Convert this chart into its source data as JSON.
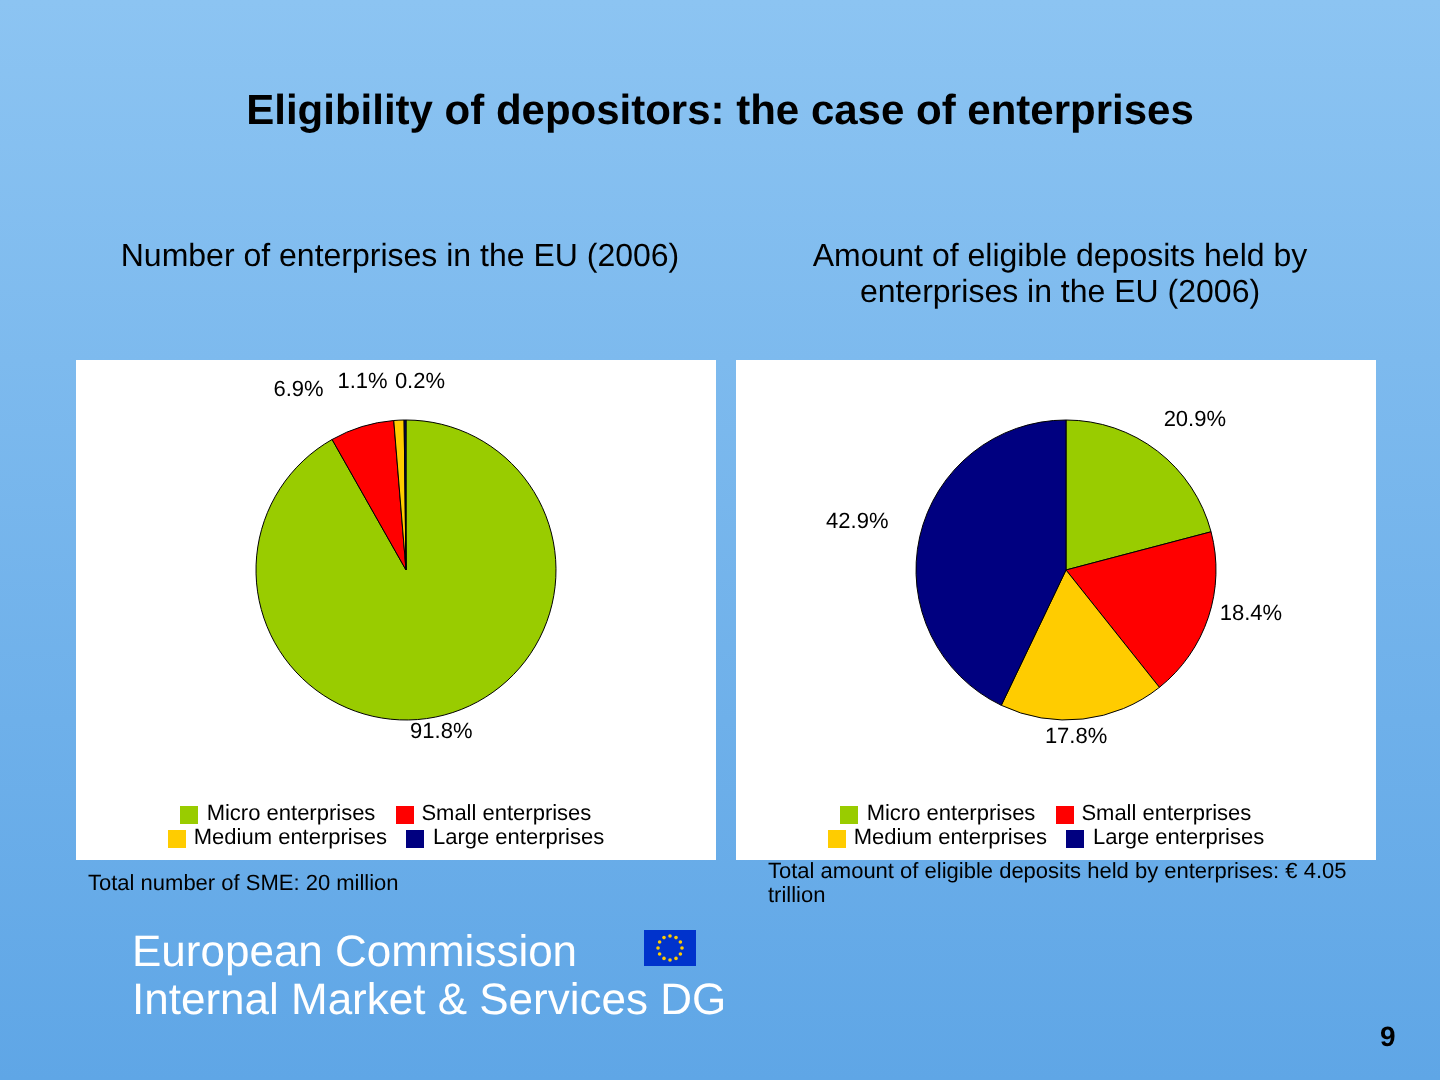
{
  "chart_data": [
    {
      "type": "pie",
      "title": "Eligibility of depositors: the case of enterprises",
      "subtitle": "Number of enterprises in the EU (2006)",
      "categories": [
        "Micro enterprises",
        "Small enterprises",
        "Medium enterprises",
        "Large enterprises"
      ],
      "values": [
        91.8,
        6.9,
        1.1,
        0.2
      ],
      "value_labels": [
        "91.8%",
        "6.9%",
        "1.1%",
        "0.2%"
      ],
      "colors": [
        "#99cc00",
        "#ff0000",
        "#ffcc00",
        "#000080"
      ],
      "legend": "bottom",
      "annotations": [
        "Total number of SME: 20 million",
        "European Commission",
        "Internal Market & Services DG"
      ]
    },
    {
      "type": "pie",
      "title": "Amount of eligible deposits held by enterprises in the EU (2006)",
      "categories": [
        "Micro enterprises",
        "Small enterprises",
        "Medium enterprises",
        "Large enterprises"
      ],
      "values": [
        20.9,
        18.4,
        17.8,
        42.9
      ],
      "value_labels": [
        "20.9%",
        "18.4%",
        "17.8%",
        "42.9%"
      ],
      "colors": [
        "#99cc00",
        "#ff0000",
        "#ffcc00",
        "#000080"
      ],
      "legend": "bottom",
      "annotations": [
        "Total amount of eligible deposits held by enterprises: € 4.05 trillion",
        "9"
      ]
    }
  ]
}
